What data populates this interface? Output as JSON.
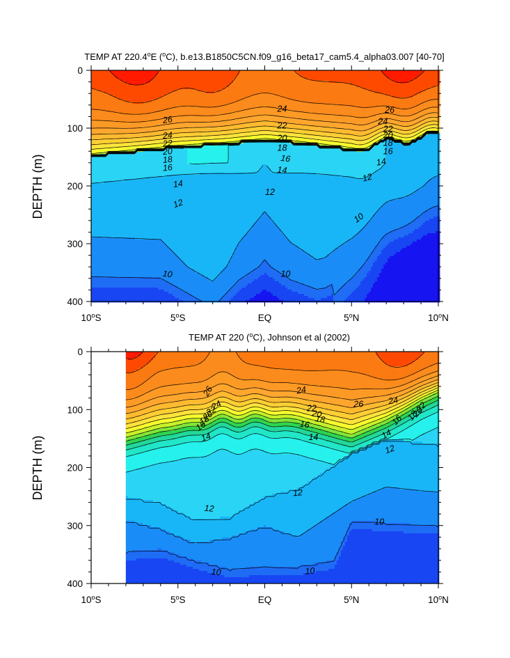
{
  "colors": {
    "t_ge_28": "#ff1a00",
    "t_27_28": "#fe4a00",
    "t_26_27": "#fb7a12",
    "t_25_26": "#fb8b1c",
    "t_24_25": "#fd9a25",
    "t_23_24": "#ffa62e",
    "t_22_23": "#ffba30",
    "t_21_22": "#ffce33",
    "t_20_21": "#ffe33c",
    "t_19_20": "#f7fb2d",
    "t_18_19": "#c5f22a",
    "t_17_18": "#7fe638",
    "t_16_17": "#2ed451",
    "t_15_16": "#22d79a",
    "t_14_15": "#21e6c8",
    "t_13_14": "#27f1ec",
    "t_12_13": "#2ad4f5",
    "t_11_12": "#19b6f7",
    "t_10_11": "#1a8cf7",
    "t_lt_10": "#1f6cf5",
    "deep": "#1846f3",
    "deepest": "#1714f2",
    "contour": "#000000"
  },
  "chart_data": [
    {
      "type": "contour",
      "title": "TEMP AT 220.4°E (°C), b.e13.B1850C5CN.f09_g16_beta17_cam5.4_alpha03.007 [40-70]",
      "title_parts": {
        "pre": "TEMP AT 220.4",
        "o1": "o",
        "mid": "E (",
        "o2": "o",
        "post": "C), b.e13.B1850C5CN.f09_g16_beta17_cam5.4_alpha03.007 [40-70]"
      },
      "xlabel": "",
      "ylabel": "DEPTH (m)",
      "xlim": [
        -10,
        10
      ],
      "ylim": [
        0,
        400
      ],
      "y_reversed": true,
      "x_ticks": [
        {
          "value": -10,
          "num": "10",
          "deg": "o",
          "hem": "S"
        },
        {
          "value": -5,
          "num": "5",
          "deg": "o",
          "hem": "S"
        },
        {
          "value": 0,
          "num": "EQ",
          "deg": "",
          "hem": ""
        },
        {
          "value": 5,
          "num": "5",
          "deg": "o",
          "hem": "N"
        },
        {
          "value": 10,
          "num": "10",
          "deg": "o",
          "hem": "N"
        }
      ],
      "y_ticks": [
        0,
        100,
        200,
        300,
        400
      ],
      "contour_interval": 1,
      "labels": [
        {
          "text": "26",
          "x": -5.6,
          "y": 85,
          "angle": -8
        },
        {
          "text": "24",
          "x": -5.6,
          "y": 112,
          "angle": -6
        },
        {
          "text": "22",
          "x": -5.6,
          "y": 126,
          "angle": -6
        },
        {
          "text": "20",
          "x": -5.6,
          "y": 140,
          "angle": -6
        },
        {
          "text": "18",
          "x": -5.6,
          "y": 154,
          "angle": -6
        },
        {
          "text": "16",
          "x": -5.6,
          "y": 168,
          "angle": -6
        },
        {
          "text": "14",
          "x": -5.0,
          "y": 196,
          "angle": -8
        },
        {
          "text": "12",
          "x": -5.0,
          "y": 230,
          "angle": -20
        },
        {
          "text": "10",
          "x": -5.6,
          "y": 352,
          "angle": 8
        },
        {
          "text": "24",
          "x": 1.0,
          "y": 66,
          "angle": 0
        },
        {
          "text": "22",
          "x": 1.0,
          "y": 95,
          "angle": 0
        },
        {
          "text": "20",
          "x": 1.0,
          "y": 117,
          "angle": 0
        },
        {
          "text": "18",
          "x": 1.0,
          "y": 134,
          "angle": 0
        },
        {
          "text": "16",
          "x": 1.2,
          "y": 152,
          "angle": 8
        },
        {
          "text": "14",
          "x": 1.0,
          "y": 172,
          "angle": 5
        },
        {
          "text": "12",
          "x": 0.3,
          "y": 210,
          "angle": 0
        },
        {
          "text": "10",
          "x": 1.2,
          "y": 352,
          "angle": 0
        },
        {
          "text": "26",
          "x": 7.2,
          "y": 68,
          "angle": 0
        },
        {
          "text": "24",
          "x": 6.8,
          "y": 88,
          "angle": 0
        },
        {
          "text": "22",
          "x": 7.1,
          "y": 101,
          "angle": 0
        },
        {
          "text": "20",
          "x": 7.1,
          "y": 112,
          "angle": 0
        },
        {
          "text": "18",
          "x": 7.1,
          "y": 125,
          "angle": 0
        },
        {
          "text": "16",
          "x": 7.1,
          "y": 140,
          "angle": 0
        },
        {
          "text": "14",
          "x": 6.7,
          "y": 158,
          "angle": -10
        },
        {
          "text": "12",
          "x": 5.9,
          "y": 185,
          "angle": -15
        },
        {
          "text": "10",
          "x": 5.4,
          "y": 255,
          "angle": -35
        }
      ]
    },
    {
      "type": "contour",
      "title": "TEMP AT 220 (°C), Johnson et al (2002)",
      "title_parts": {
        "pre": "TEMP AT 220 (",
        "o1": "o",
        "mid": "C), Johnson et al (2002)",
        "o2": "",
        "post": ""
      },
      "xlabel": "",
      "ylabel": "DEPTH (m)",
      "xlim": [
        -10,
        10
      ],
      "ylim": [
        0,
        400
      ],
      "y_reversed": true,
      "data_xlim": [
        -8,
        10
      ],
      "x_ticks": [
        {
          "value": -10,
          "num": "10",
          "deg": "o",
          "hem": "S"
        },
        {
          "value": -5,
          "num": "5",
          "deg": "o",
          "hem": "S"
        },
        {
          "value": 0,
          "num": "EQ",
          "deg": "",
          "hem": ""
        },
        {
          "value": 5,
          "num": "5",
          "deg": "o",
          "hem": "N"
        },
        {
          "value": 10,
          "num": "10",
          "deg": "o",
          "hem": "N"
        }
      ],
      "y_ticks": [
        0,
        100,
        200,
        300,
        400
      ],
      "contour_interval": 1,
      "labels": [
        {
          "text": "26",
          "x": -3.3,
          "y": 68,
          "angle": -60
        },
        {
          "text": "24",
          "x": -2.8,
          "y": 92,
          "angle": -30
        },
        {
          "text": "22",
          "x": -3.1,
          "y": 102,
          "angle": -30
        },
        {
          "text": "20",
          "x": -3.3,
          "y": 110,
          "angle": -35
        },
        {
          "text": "18",
          "x": -3.5,
          "y": 118,
          "angle": -35
        },
        {
          "text": "16",
          "x": -3.7,
          "y": 128,
          "angle": -35
        },
        {
          "text": "14",
          "x": -3.4,
          "y": 147,
          "angle": -20
        },
        {
          "text": "12",
          "x": -3.2,
          "y": 270,
          "angle": 5
        },
        {
          "text": "10",
          "x": -2.8,
          "y": 380,
          "angle": 5
        },
        {
          "text": "24",
          "x": 2.1,
          "y": 66,
          "angle": -10
        },
        {
          "text": "22",
          "x": 2.7,
          "y": 97,
          "angle": 0
        },
        {
          "text": "20",
          "x": 3.0,
          "y": 107,
          "angle": 10
        },
        {
          "text": "18",
          "x": 3.2,
          "y": 116,
          "angle": 10
        },
        {
          "text": "16",
          "x": 2.3,
          "y": 125,
          "angle": 10
        },
        {
          "text": "14",
          "x": 2.8,
          "y": 147,
          "angle": 0
        },
        {
          "text": "12",
          "x": 1.9,
          "y": 243,
          "angle": -5
        },
        {
          "text": "10",
          "x": 2.6,
          "y": 378,
          "angle": -5
        },
        {
          "text": "26",
          "x": 5.4,
          "y": 90,
          "angle": 0
        },
        {
          "text": "24",
          "x": 7.4,
          "y": 84,
          "angle": -10
        },
        {
          "text": "22",
          "x": 9.0,
          "y": 95,
          "angle": -45
        },
        {
          "text": "20",
          "x": 8.8,
          "y": 104,
          "angle": -45
        },
        {
          "text": "18",
          "x": 8.5,
          "y": 110,
          "angle": -50
        },
        {
          "text": "16",
          "x": 7.6,
          "y": 118,
          "angle": -45
        },
        {
          "text": "14",
          "x": 7.0,
          "y": 142,
          "angle": -30
        },
        {
          "text": "12",
          "x": 7.2,
          "y": 168,
          "angle": -20
        },
        {
          "text": "10",
          "x": 6.6,
          "y": 293,
          "angle": 0
        }
      ]
    }
  ]
}
